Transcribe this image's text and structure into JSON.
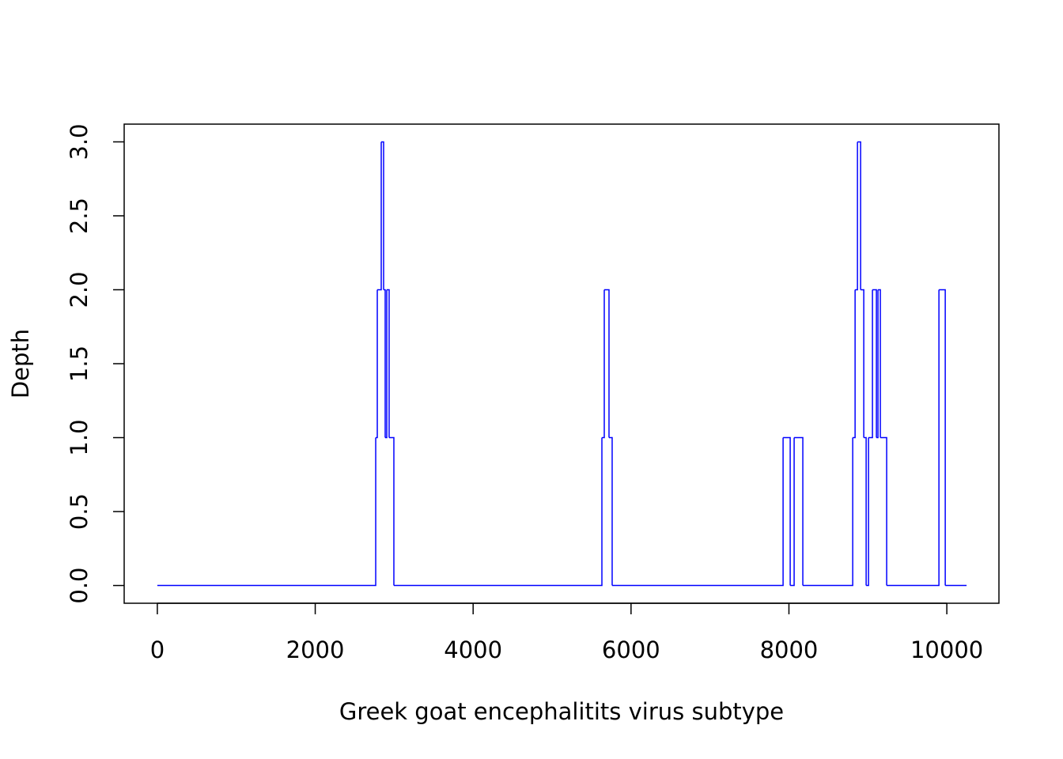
{
  "chart_data": {
    "type": "step",
    "xlabel": "Greek goat encephalitits virus subtype",
    "ylabel": "Depth",
    "x": [
      0,
      2766,
      2786,
      2836,
      2866,
      2886,
      2906,
      2936,
      2996,
      5631,
      5661,
      5721,
      5761,
      7926,
      8016,
      8066,
      8176,
      8808,
      8838,
      8868,
      8908,
      8948,
      8978,
      9008,
      9058,
      9108,
      9128,
      9158,
      9238,
      9900,
      9980,
      10250
    ],
    "values": [
      0,
      1,
      2,
      3,
      2,
      1,
      2,
      1,
      0,
      1,
      2,
      1,
      0,
      1,
      0,
      1,
      0,
      1,
      2,
      3,
      2,
      1,
      0,
      1,
      2,
      1,
      2,
      1,
      0,
      2,
      0,
      0
    ],
    "color": "#0000ff",
    "xlim": [
      -420,
      10660
    ],
    "ylim": [
      -0.12,
      3.12
    ],
    "xticks": [
      0,
      2000,
      4000,
      6000,
      8000,
      10000
    ],
    "yticks": [
      {
        "value": 0,
        "label": "0.0"
      },
      0.5,
      {
        "value": 1,
        "label": "1.0"
      },
      1.5,
      {
        "value": 2,
        "label": "2.0"
      },
      2.5,
      {
        "value": 3,
        "label": "3.0"
      }
    ]
  }
}
